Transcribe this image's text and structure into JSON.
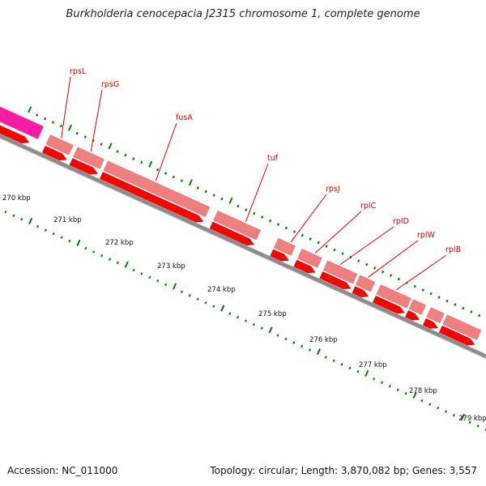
{
  "title": "Burkholderia cenocepacia J2315 chromosome 1, complete genome",
  "footer": {
    "accession": "Accession: NC_011000",
    "summary": "Topology: circular; Length: 3,870,082 bp; Genes: 3,557"
  },
  "colors": {
    "background": "#ffffff",
    "backbone": "#8c8c8c",
    "gene_feature": "#ff0000",
    "cds_feature": "#f08080",
    "other_feature": "#ff1aa6",
    "tick": "#008000",
    "gene_label": "#cc0000"
  },
  "scale_labels": [
    "270 kbp",
    "271 kbp",
    "272 kbp",
    "273 kbp",
    "274 kbp",
    "275 kbp",
    "276 kbp",
    "277 kbp",
    "278 kbp",
    "279 kbp"
  ],
  "genes": [
    "rpsL",
    "rpsG",
    "fusA",
    "tuf",
    "rpsJ",
    "rplC",
    "rplD",
    "rplW",
    "rplB"
  ]
}
